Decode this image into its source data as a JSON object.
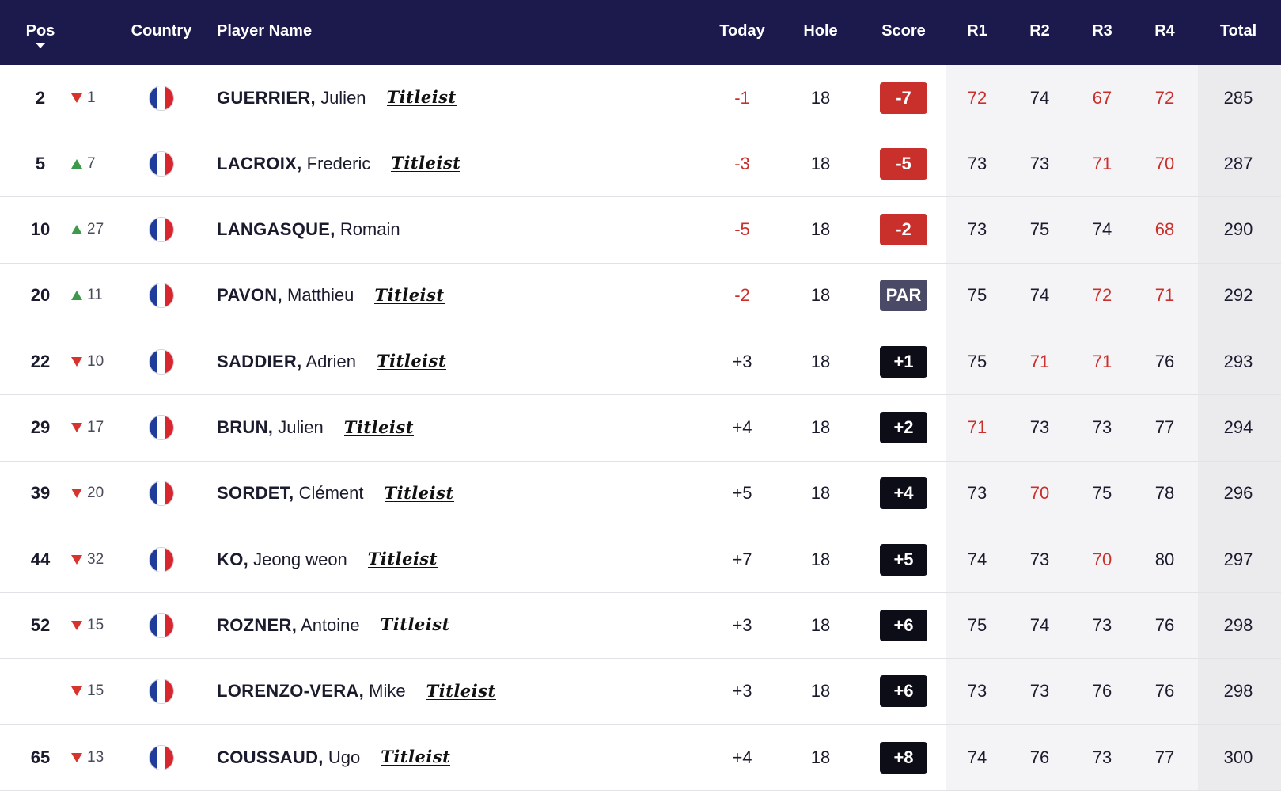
{
  "header": {
    "pos": "Pos",
    "country": "Country",
    "player_name": "Player Name",
    "today": "Today",
    "hole": "Hole",
    "score": "Score",
    "r1": "R1",
    "r2": "R2",
    "r3": "R3",
    "r4": "R4",
    "total": "Total"
  },
  "colors": {
    "header_bg": "#1c1a4d",
    "under_par": "#c9302c",
    "par_badge": "#4b4a66",
    "over_par_badge": "#0d0d18",
    "up_arrow": "#3d9a4a",
    "down_arrow": "#d6342c"
  },
  "country_flag_icon": "france-flag-icon",
  "sponsor_logo_text": "Titleist",
  "rows": [
    {
      "pos": "2",
      "dir": "down",
      "move": "1",
      "last": "GUERRIER,",
      "first": "Julien",
      "logo": true,
      "today": "-1",
      "today_under": true,
      "hole": "18",
      "score": "-7",
      "score_type": "under",
      "r1": "72",
      "r1_red": true,
      "r2": "74",
      "r2_red": false,
      "r3": "67",
      "r3_red": true,
      "r4": "72",
      "r4_red": true,
      "total": "285"
    },
    {
      "pos": "5",
      "dir": "up",
      "move": "7",
      "last": "LACROIX,",
      "first": "Frederic",
      "logo": true,
      "today": "-3",
      "today_under": true,
      "hole": "18",
      "score": "-5",
      "score_type": "under",
      "r1": "73",
      "r1_red": false,
      "r2": "73",
      "r2_red": false,
      "r3": "71",
      "r3_red": true,
      "r4": "70",
      "r4_red": true,
      "total": "287"
    },
    {
      "pos": "10",
      "dir": "up",
      "move": "27",
      "last": "LANGASQUE,",
      "first": "Romain",
      "logo": false,
      "today": "-5",
      "today_under": true,
      "hole": "18",
      "score": "-2",
      "score_type": "under",
      "r1": "73",
      "r1_red": false,
      "r2": "75",
      "r2_red": false,
      "r3": "74",
      "r3_red": false,
      "r4": "68",
      "r4_red": true,
      "total": "290"
    },
    {
      "pos": "20",
      "dir": "up",
      "move": "11",
      "last": "PAVON,",
      "first": "Matthieu",
      "logo": true,
      "today": "-2",
      "today_under": true,
      "hole": "18",
      "score": "PAR",
      "score_type": "par",
      "r1": "75",
      "r1_red": false,
      "r2": "74",
      "r2_red": false,
      "r3": "72",
      "r3_red": true,
      "r4": "71",
      "r4_red": true,
      "total": "292"
    },
    {
      "pos": "22",
      "dir": "down",
      "move": "10",
      "last": "SADDIER,",
      "first": "Adrien",
      "logo": true,
      "today": "+3",
      "today_under": false,
      "hole": "18",
      "score": "+1",
      "score_type": "over",
      "r1": "75",
      "r1_red": false,
      "r2": "71",
      "r2_red": true,
      "r3": "71",
      "r3_red": true,
      "r4": "76",
      "r4_red": false,
      "total": "293"
    },
    {
      "pos": "29",
      "dir": "down",
      "move": "17",
      "last": "BRUN,",
      "first": "Julien",
      "logo": true,
      "today": "+4",
      "today_under": false,
      "hole": "18",
      "score": "+2",
      "score_type": "over",
      "r1": "71",
      "r1_red": true,
      "r2": "73",
      "r2_red": false,
      "r3": "73",
      "r3_red": false,
      "r4": "77",
      "r4_red": false,
      "total": "294"
    },
    {
      "pos": "39",
      "dir": "down",
      "move": "20",
      "last": "SORDET,",
      "first": "Clément",
      "logo": true,
      "today": "+5",
      "today_under": false,
      "hole": "18",
      "score": "+4",
      "score_type": "over",
      "r1": "73",
      "r1_red": false,
      "r2": "70",
      "r2_red": true,
      "r3": "75",
      "r3_red": false,
      "r4": "78",
      "r4_red": false,
      "total": "296"
    },
    {
      "pos": "44",
      "dir": "down",
      "move": "32",
      "last": "KO,",
      "first": "Jeong weon",
      "logo": true,
      "today": "+7",
      "today_under": false,
      "hole": "18",
      "score": "+5",
      "score_type": "over",
      "r1": "74",
      "r1_red": false,
      "r2": "73",
      "r2_red": false,
      "r3": "70",
      "r3_red": true,
      "r4": "80",
      "r4_red": false,
      "total": "297"
    },
    {
      "pos": "52",
      "dir": "down",
      "move": "15",
      "last": "ROZNER,",
      "first": "Antoine",
      "logo": true,
      "today": "+3",
      "today_under": false,
      "hole": "18",
      "score": "+6",
      "score_type": "over",
      "r1": "75",
      "r1_red": false,
      "r2": "74",
      "r2_red": false,
      "r3": "73",
      "r3_red": false,
      "r4": "76",
      "r4_red": false,
      "total": "298"
    },
    {
      "pos": "",
      "dir": "down",
      "move": "15",
      "last": "LORENZO-VERA,",
      "first": "Mike",
      "logo": true,
      "today": "+3",
      "today_under": false,
      "hole": "18",
      "score": "+6",
      "score_type": "over",
      "r1": "73",
      "r1_red": false,
      "r2": "73",
      "r2_red": false,
      "r3": "76",
      "r3_red": false,
      "r4": "76",
      "r4_red": false,
      "total": "298"
    },
    {
      "pos": "65",
      "dir": "down",
      "move": "13",
      "last": "COUSSAUD,",
      "first": "Ugo",
      "logo": true,
      "today": "+4",
      "today_under": false,
      "hole": "18",
      "score": "+8",
      "score_type": "over",
      "r1": "74",
      "r1_red": false,
      "r2": "76",
      "r2_red": false,
      "r3": "73",
      "r3_red": false,
      "r4": "77",
      "r4_red": false,
      "total": "300"
    }
  ]
}
